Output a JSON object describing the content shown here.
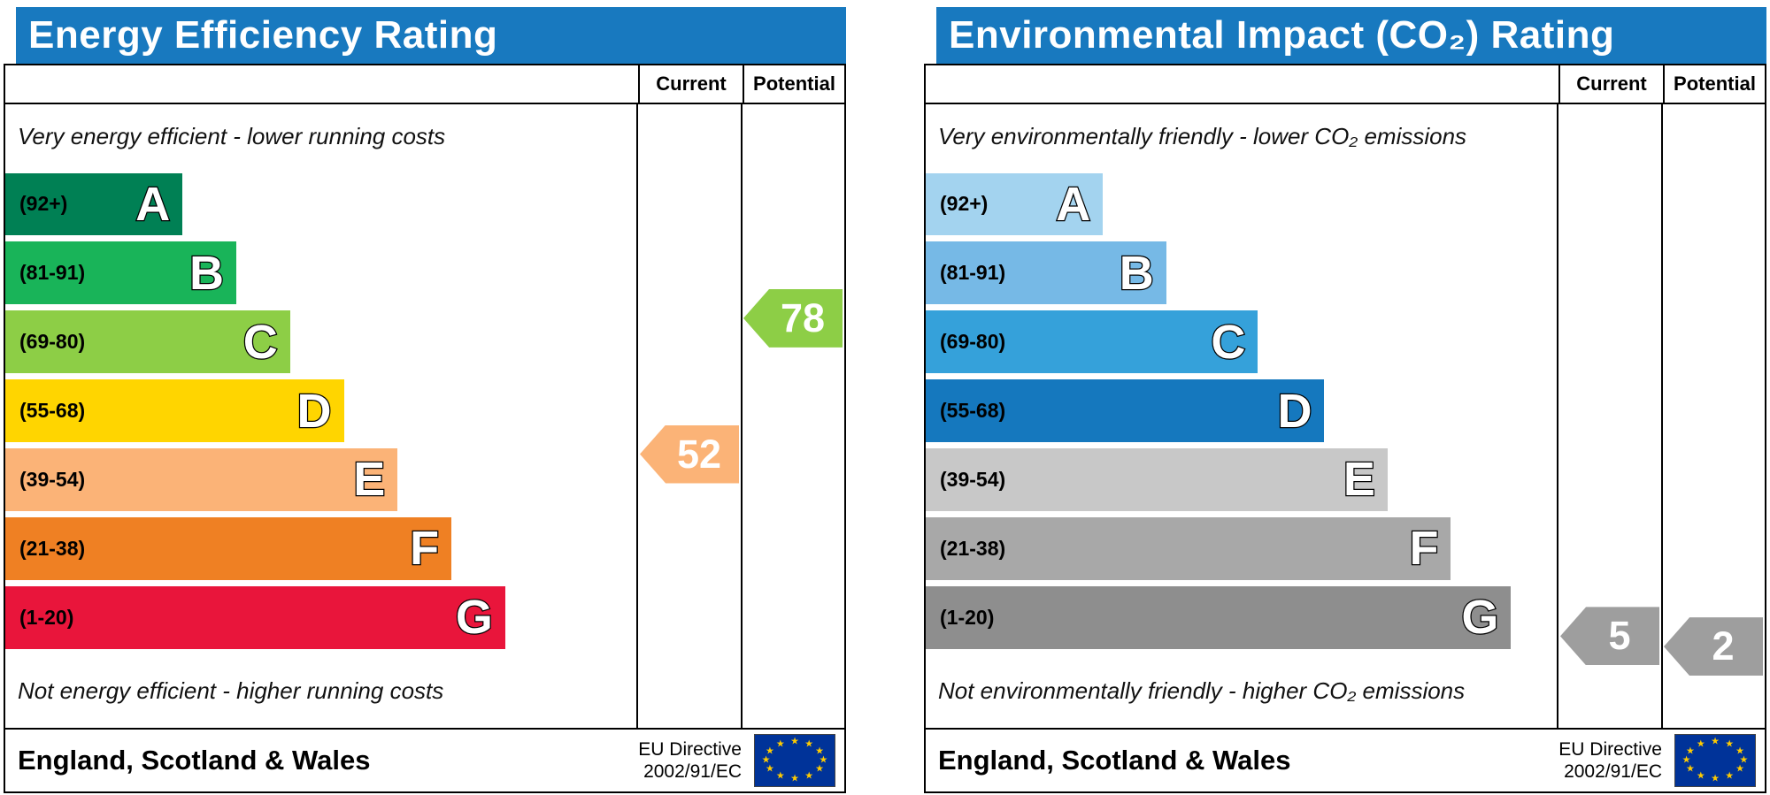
{
  "chart_data": [
    {
      "type": "bar",
      "variant": "epc-rating-bands",
      "title": "Energy Efficiency Rating",
      "header_color": "#1879bf",
      "columns": {
        "current": "Current",
        "potential": "Potential"
      },
      "top_note": "Very energy efficient - lower running costs",
      "bottom_note": "Not energy efficient - higher running costs",
      "bands": [
        {
          "letter": "A",
          "label": "(92+)",
          "min": 92,
          "max": 100,
          "color": "#008054",
          "width_pct": 28
        },
        {
          "letter": "B",
          "label": "(81-91)",
          "min": 81,
          "max": 91,
          "color": "#19b459",
          "width_pct": 36.5
        },
        {
          "letter": "C",
          "label": "(69-80)",
          "min": 69,
          "max": 80,
          "color": "#8dce46",
          "width_pct": 45
        },
        {
          "letter": "D",
          "label": "(55-68)",
          "min": 55,
          "max": 68,
          "color": "#ffd500",
          "width_pct": 53.5
        },
        {
          "letter": "E",
          "label": "(39-54)",
          "min": 39,
          "max": 54,
          "color": "#fbb377",
          "width_pct": 62
        },
        {
          "letter": "F",
          "label": "(21-38)",
          "min": 21,
          "max": 38,
          "color": "#ef8023",
          "width_pct": 70.5
        },
        {
          "letter": "G",
          "label": "(1-20)",
          "min": 1,
          "max": 20,
          "color": "#e9153b",
          "width_pct": 79
        }
      ],
      "current": {
        "value": 52,
        "band": "E",
        "color": "#fbb377"
      },
      "potential": {
        "value": 78,
        "band": "C",
        "color": "#8dce46"
      },
      "footer": {
        "region": "England, Scotland & Wales",
        "directive_line1": "EU Directive",
        "directive_line2": "2002/91/EC",
        "flag_bg": "#003399",
        "flag_star": "#ffcc00"
      }
    },
    {
      "type": "bar",
      "variant": "epc-rating-bands",
      "title": "Environmental Impact (CO₂) Rating",
      "header_color": "#1879bf",
      "columns": {
        "current": "Current",
        "potential": "Potential"
      },
      "top_note": "Very environmentally friendly - lower CO₂ emissions",
      "bottom_note": "Not environmentally friendly - higher CO₂ emissions",
      "bands": [
        {
          "letter": "A",
          "label": "(92+)",
          "min": 92,
          "max": 100,
          "color": "#a3d3ef",
          "width_pct": 28
        },
        {
          "letter": "B",
          "label": "(81-91)",
          "min": 81,
          "max": 91,
          "color": "#76b9e6",
          "width_pct": 38
        },
        {
          "letter": "C",
          "label": "(69-80)",
          "min": 69,
          "max": 80,
          "color": "#35a1da",
          "width_pct": 52.5
        },
        {
          "letter": "D",
          "label": "(55-68)",
          "min": 55,
          "max": 68,
          "color": "#1578be",
          "width_pct": 63
        },
        {
          "letter": "E",
          "label": "(39-54)",
          "min": 39,
          "max": 54,
          "color": "#c8c8c8",
          "width_pct": 73
        },
        {
          "letter": "F",
          "label": "(21-38)",
          "min": 21,
          "max": 38,
          "color": "#a8a8a8",
          "width_pct": 83
        },
        {
          "letter": "G",
          "label": "(1-20)",
          "min": 1,
          "max": 20,
          "color": "#8e8e8e",
          "width_pct": 92.5
        }
      ],
      "current": {
        "value": 5,
        "band": "G",
        "color": "#9e9e9e"
      },
      "potential": {
        "value": 2,
        "band": "G",
        "color": "#9e9e9e"
      },
      "footer": {
        "region": "England, Scotland & Wales",
        "directive_line1": "EU Directive",
        "directive_line2": "2002/91/EC",
        "flag_bg": "#003399",
        "flag_star": "#ffcc00"
      }
    }
  ]
}
